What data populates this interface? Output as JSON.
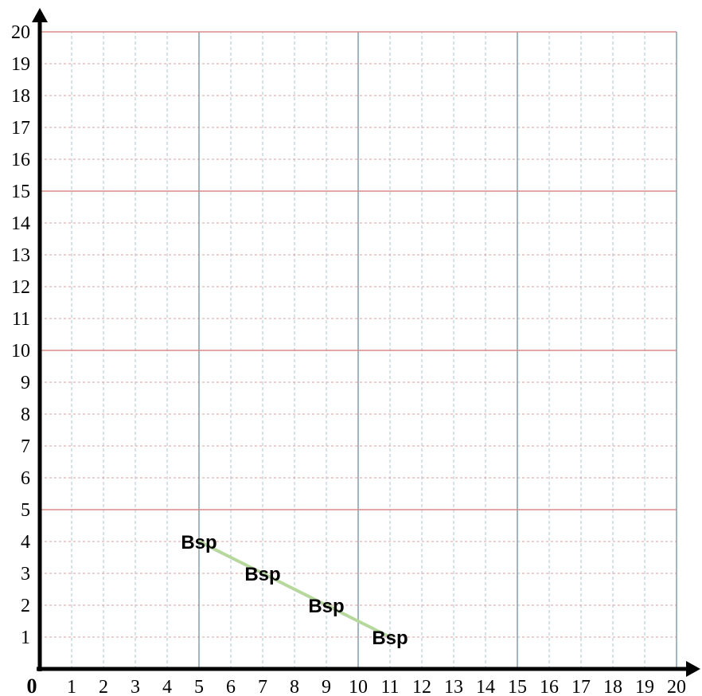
{
  "chart_data": {
    "type": "line",
    "title": "",
    "xlabel": "",
    "ylabel": "",
    "origin_label": "0",
    "xlim": [
      0,
      20
    ],
    "ylim": [
      0,
      20
    ],
    "x_ticks": [
      "1",
      "2",
      "3",
      "4",
      "5",
      "6",
      "7",
      "8",
      "9",
      "10",
      "11",
      "12",
      "13",
      "14",
      "15",
      "16",
      "17",
      "18",
      "19",
      "20"
    ],
    "y_ticks": [
      "1",
      "2",
      "3",
      "4",
      "5",
      "6",
      "7",
      "8",
      "9",
      "10",
      "11",
      "12",
      "13",
      "14",
      "15",
      "16",
      "17",
      "18",
      "19",
      "20"
    ],
    "grid": true,
    "grid_major_every": 5,
    "series": [
      {
        "color": "#b5d99c",
        "points": [
          {
            "x": 5,
            "y": 4,
            "label": "Bsp"
          },
          {
            "x": 7,
            "y": 3,
            "label": "Bsp"
          },
          {
            "x": 9,
            "y": 2,
            "label": "Bsp"
          },
          {
            "x": 11,
            "y": 1,
            "label": "Bsp"
          }
        ]
      }
    ],
    "colors": {
      "minor_grid": "#a9c4dc",
      "major_vertical": "#7f9fb3",
      "major_horizontal": "#d98a8a",
      "axis": "#000000"
    }
  }
}
